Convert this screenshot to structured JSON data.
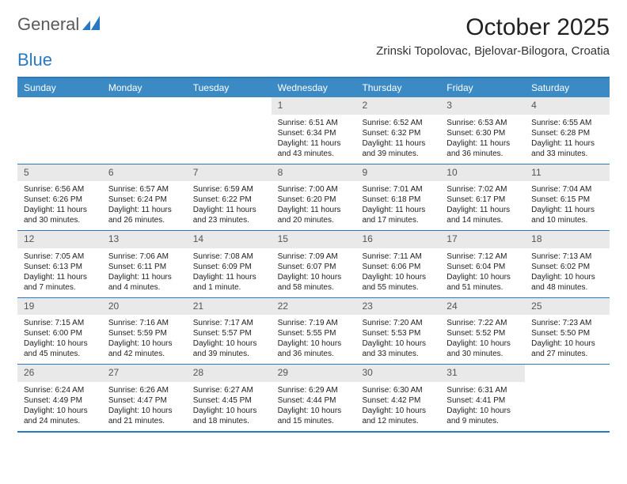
{
  "logo": {
    "text1": "General",
    "text2": "Blue"
  },
  "title": "October 2025",
  "location": "Zrinski Topolovac, Bjelovar-Bilogora, Croatia",
  "colors": {
    "header_bg": "#3b8ac4",
    "header_text": "#ffffff",
    "border": "#2a78c2",
    "daynum_bg": "#e9e9e9",
    "daynum_text": "#555555",
    "body_text": "#222222",
    "page_bg": "#ffffff"
  },
  "day_names": [
    "Sunday",
    "Monday",
    "Tuesday",
    "Wednesday",
    "Thursday",
    "Friday",
    "Saturday"
  ],
  "weeks": [
    [
      {
        "n": "",
        "empty": true
      },
      {
        "n": "",
        "empty": true
      },
      {
        "n": "",
        "empty": true
      },
      {
        "n": "1",
        "sr": "Sunrise: 6:51 AM",
        "ss": "Sunset: 6:34 PM",
        "dl": "Daylight: 11 hours and 43 minutes."
      },
      {
        "n": "2",
        "sr": "Sunrise: 6:52 AM",
        "ss": "Sunset: 6:32 PM",
        "dl": "Daylight: 11 hours and 39 minutes."
      },
      {
        "n": "3",
        "sr": "Sunrise: 6:53 AM",
        "ss": "Sunset: 6:30 PM",
        "dl": "Daylight: 11 hours and 36 minutes."
      },
      {
        "n": "4",
        "sr": "Sunrise: 6:55 AM",
        "ss": "Sunset: 6:28 PM",
        "dl": "Daylight: 11 hours and 33 minutes."
      }
    ],
    [
      {
        "n": "5",
        "sr": "Sunrise: 6:56 AM",
        "ss": "Sunset: 6:26 PM",
        "dl": "Daylight: 11 hours and 30 minutes."
      },
      {
        "n": "6",
        "sr": "Sunrise: 6:57 AM",
        "ss": "Sunset: 6:24 PM",
        "dl": "Daylight: 11 hours and 26 minutes."
      },
      {
        "n": "7",
        "sr": "Sunrise: 6:59 AM",
        "ss": "Sunset: 6:22 PM",
        "dl": "Daylight: 11 hours and 23 minutes."
      },
      {
        "n": "8",
        "sr": "Sunrise: 7:00 AM",
        "ss": "Sunset: 6:20 PM",
        "dl": "Daylight: 11 hours and 20 minutes."
      },
      {
        "n": "9",
        "sr": "Sunrise: 7:01 AM",
        "ss": "Sunset: 6:18 PM",
        "dl": "Daylight: 11 hours and 17 minutes."
      },
      {
        "n": "10",
        "sr": "Sunrise: 7:02 AM",
        "ss": "Sunset: 6:17 PM",
        "dl": "Daylight: 11 hours and 14 minutes."
      },
      {
        "n": "11",
        "sr": "Sunrise: 7:04 AM",
        "ss": "Sunset: 6:15 PM",
        "dl": "Daylight: 11 hours and 10 minutes."
      }
    ],
    [
      {
        "n": "12",
        "sr": "Sunrise: 7:05 AM",
        "ss": "Sunset: 6:13 PM",
        "dl": "Daylight: 11 hours and 7 minutes."
      },
      {
        "n": "13",
        "sr": "Sunrise: 7:06 AM",
        "ss": "Sunset: 6:11 PM",
        "dl": "Daylight: 11 hours and 4 minutes."
      },
      {
        "n": "14",
        "sr": "Sunrise: 7:08 AM",
        "ss": "Sunset: 6:09 PM",
        "dl": "Daylight: 11 hours and 1 minute."
      },
      {
        "n": "15",
        "sr": "Sunrise: 7:09 AM",
        "ss": "Sunset: 6:07 PM",
        "dl": "Daylight: 10 hours and 58 minutes."
      },
      {
        "n": "16",
        "sr": "Sunrise: 7:11 AM",
        "ss": "Sunset: 6:06 PM",
        "dl": "Daylight: 10 hours and 55 minutes."
      },
      {
        "n": "17",
        "sr": "Sunrise: 7:12 AM",
        "ss": "Sunset: 6:04 PM",
        "dl": "Daylight: 10 hours and 51 minutes."
      },
      {
        "n": "18",
        "sr": "Sunrise: 7:13 AM",
        "ss": "Sunset: 6:02 PM",
        "dl": "Daylight: 10 hours and 48 minutes."
      }
    ],
    [
      {
        "n": "19",
        "sr": "Sunrise: 7:15 AM",
        "ss": "Sunset: 6:00 PM",
        "dl": "Daylight: 10 hours and 45 minutes."
      },
      {
        "n": "20",
        "sr": "Sunrise: 7:16 AM",
        "ss": "Sunset: 5:59 PM",
        "dl": "Daylight: 10 hours and 42 minutes."
      },
      {
        "n": "21",
        "sr": "Sunrise: 7:17 AM",
        "ss": "Sunset: 5:57 PM",
        "dl": "Daylight: 10 hours and 39 minutes."
      },
      {
        "n": "22",
        "sr": "Sunrise: 7:19 AM",
        "ss": "Sunset: 5:55 PM",
        "dl": "Daylight: 10 hours and 36 minutes."
      },
      {
        "n": "23",
        "sr": "Sunrise: 7:20 AM",
        "ss": "Sunset: 5:53 PM",
        "dl": "Daylight: 10 hours and 33 minutes."
      },
      {
        "n": "24",
        "sr": "Sunrise: 7:22 AM",
        "ss": "Sunset: 5:52 PM",
        "dl": "Daylight: 10 hours and 30 minutes."
      },
      {
        "n": "25",
        "sr": "Sunrise: 7:23 AM",
        "ss": "Sunset: 5:50 PM",
        "dl": "Daylight: 10 hours and 27 minutes."
      }
    ],
    [
      {
        "n": "26",
        "sr": "Sunrise: 6:24 AM",
        "ss": "Sunset: 4:49 PM",
        "dl": "Daylight: 10 hours and 24 minutes."
      },
      {
        "n": "27",
        "sr": "Sunrise: 6:26 AM",
        "ss": "Sunset: 4:47 PM",
        "dl": "Daylight: 10 hours and 21 minutes."
      },
      {
        "n": "28",
        "sr": "Sunrise: 6:27 AM",
        "ss": "Sunset: 4:45 PM",
        "dl": "Daylight: 10 hours and 18 minutes."
      },
      {
        "n": "29",
        "sr": "Sunrise: 6:29 AM",
        "ss": "Sunset: 4:44 PM",
        "dl": "Daylight: 10 hours and 15 minutes."
      },
      {
        "n": "30",
        "sr": "Sunrise: 6:30 AM",
        "ss": "Sunset: 4:42 PM",
        "dl": "Daylight: 10 hours and 12 minutes."
      },
      {
        "n": "31",
        "sr": "Sunrise: 6:31 AM",
        "ss": "Sunset: 4:41 PM",
        "dl": "Daylight: 10 hours and 9 minutes."
      },
      {
        "n": "",
        "empty": true
      }
    ]
  ]
}
